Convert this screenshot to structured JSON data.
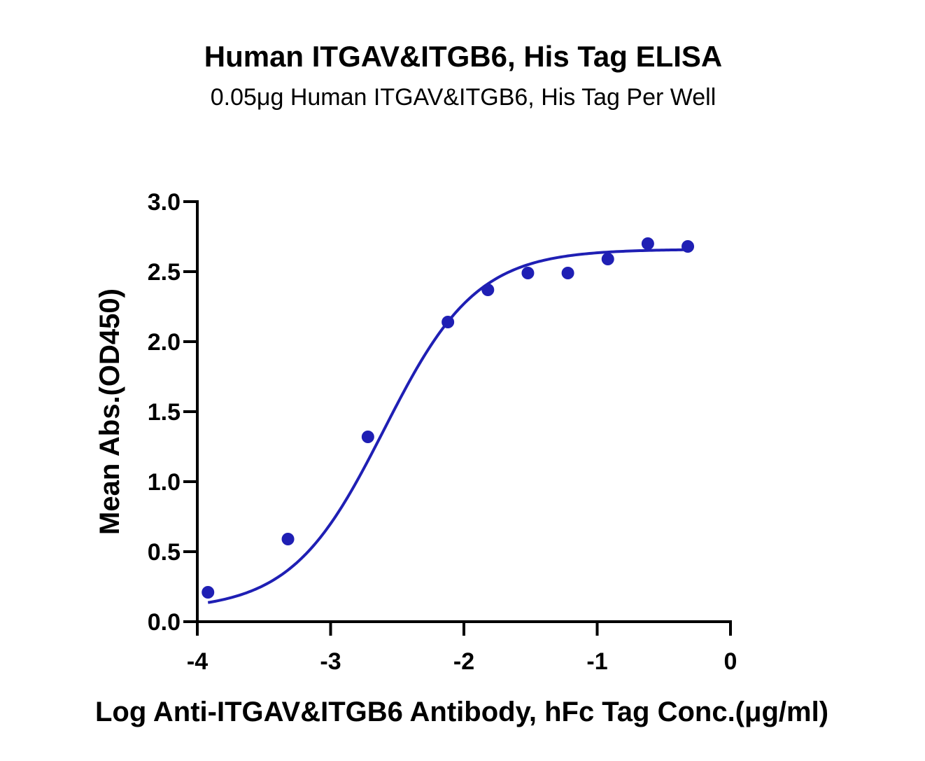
{
  "chart_data": {
    "type": "scatter",
    "title": "Human ITGAV&ITGB6, His Tag ELISA",
    "subtitle": "0.05μg Human ITGAV&ITGB6, His Tag Per Well",
    "xlabel": "Log Anti-ITGAV&ITGB6 Antibody, hFc Tag Conc.(μg/ml)",
    "ylabel": "Mean Abs.(OD450)",
    "xlim": [
      -4,
      0
    ],
    "ylim": [
      0,
      3
    ],
    "x_ticks": [
      -4,
      -3,
      -2,
      -1,
      0
    ],
    "x_tick_labels": [
      "-4",
      "-3",
      "-2",
      "-1",
      "0"
    ],
    "y_ticks": [
      0,
      0.5,
      1,
      1.5,
      2,
      2.5,
      3
    ],
    "y_tick_labels": [
      "0.0",
      "0.5",
      "1.0",
      "1.5",
      "2.0",
      "2.5",
      "3.0"
    ],
    "grid": false,
    "legend": "none",
    "color": "#1f1fb4",
    "series": [
      {
        "x": [
          -3.92,
          -3.32,
          -2.72,
          -2.12,
          -1.82,
          -1.52,
          -1.22,
          -0.92,
          -0.62,
          -0.32
        ],
        "y": [
          0.21,
          0.59,
          1.32,
          2.14,
          2.37,
          2.49,
          2.49,
          2.59,
          2.7,
          2.68
        ],
        "fit": {
          "model": "4PL",
          "bottom": 0.08,
          "top": 2.66,
          "logEC50": -2.6,
          "hill": 1.25
        }
      }
    ]
  }
}
